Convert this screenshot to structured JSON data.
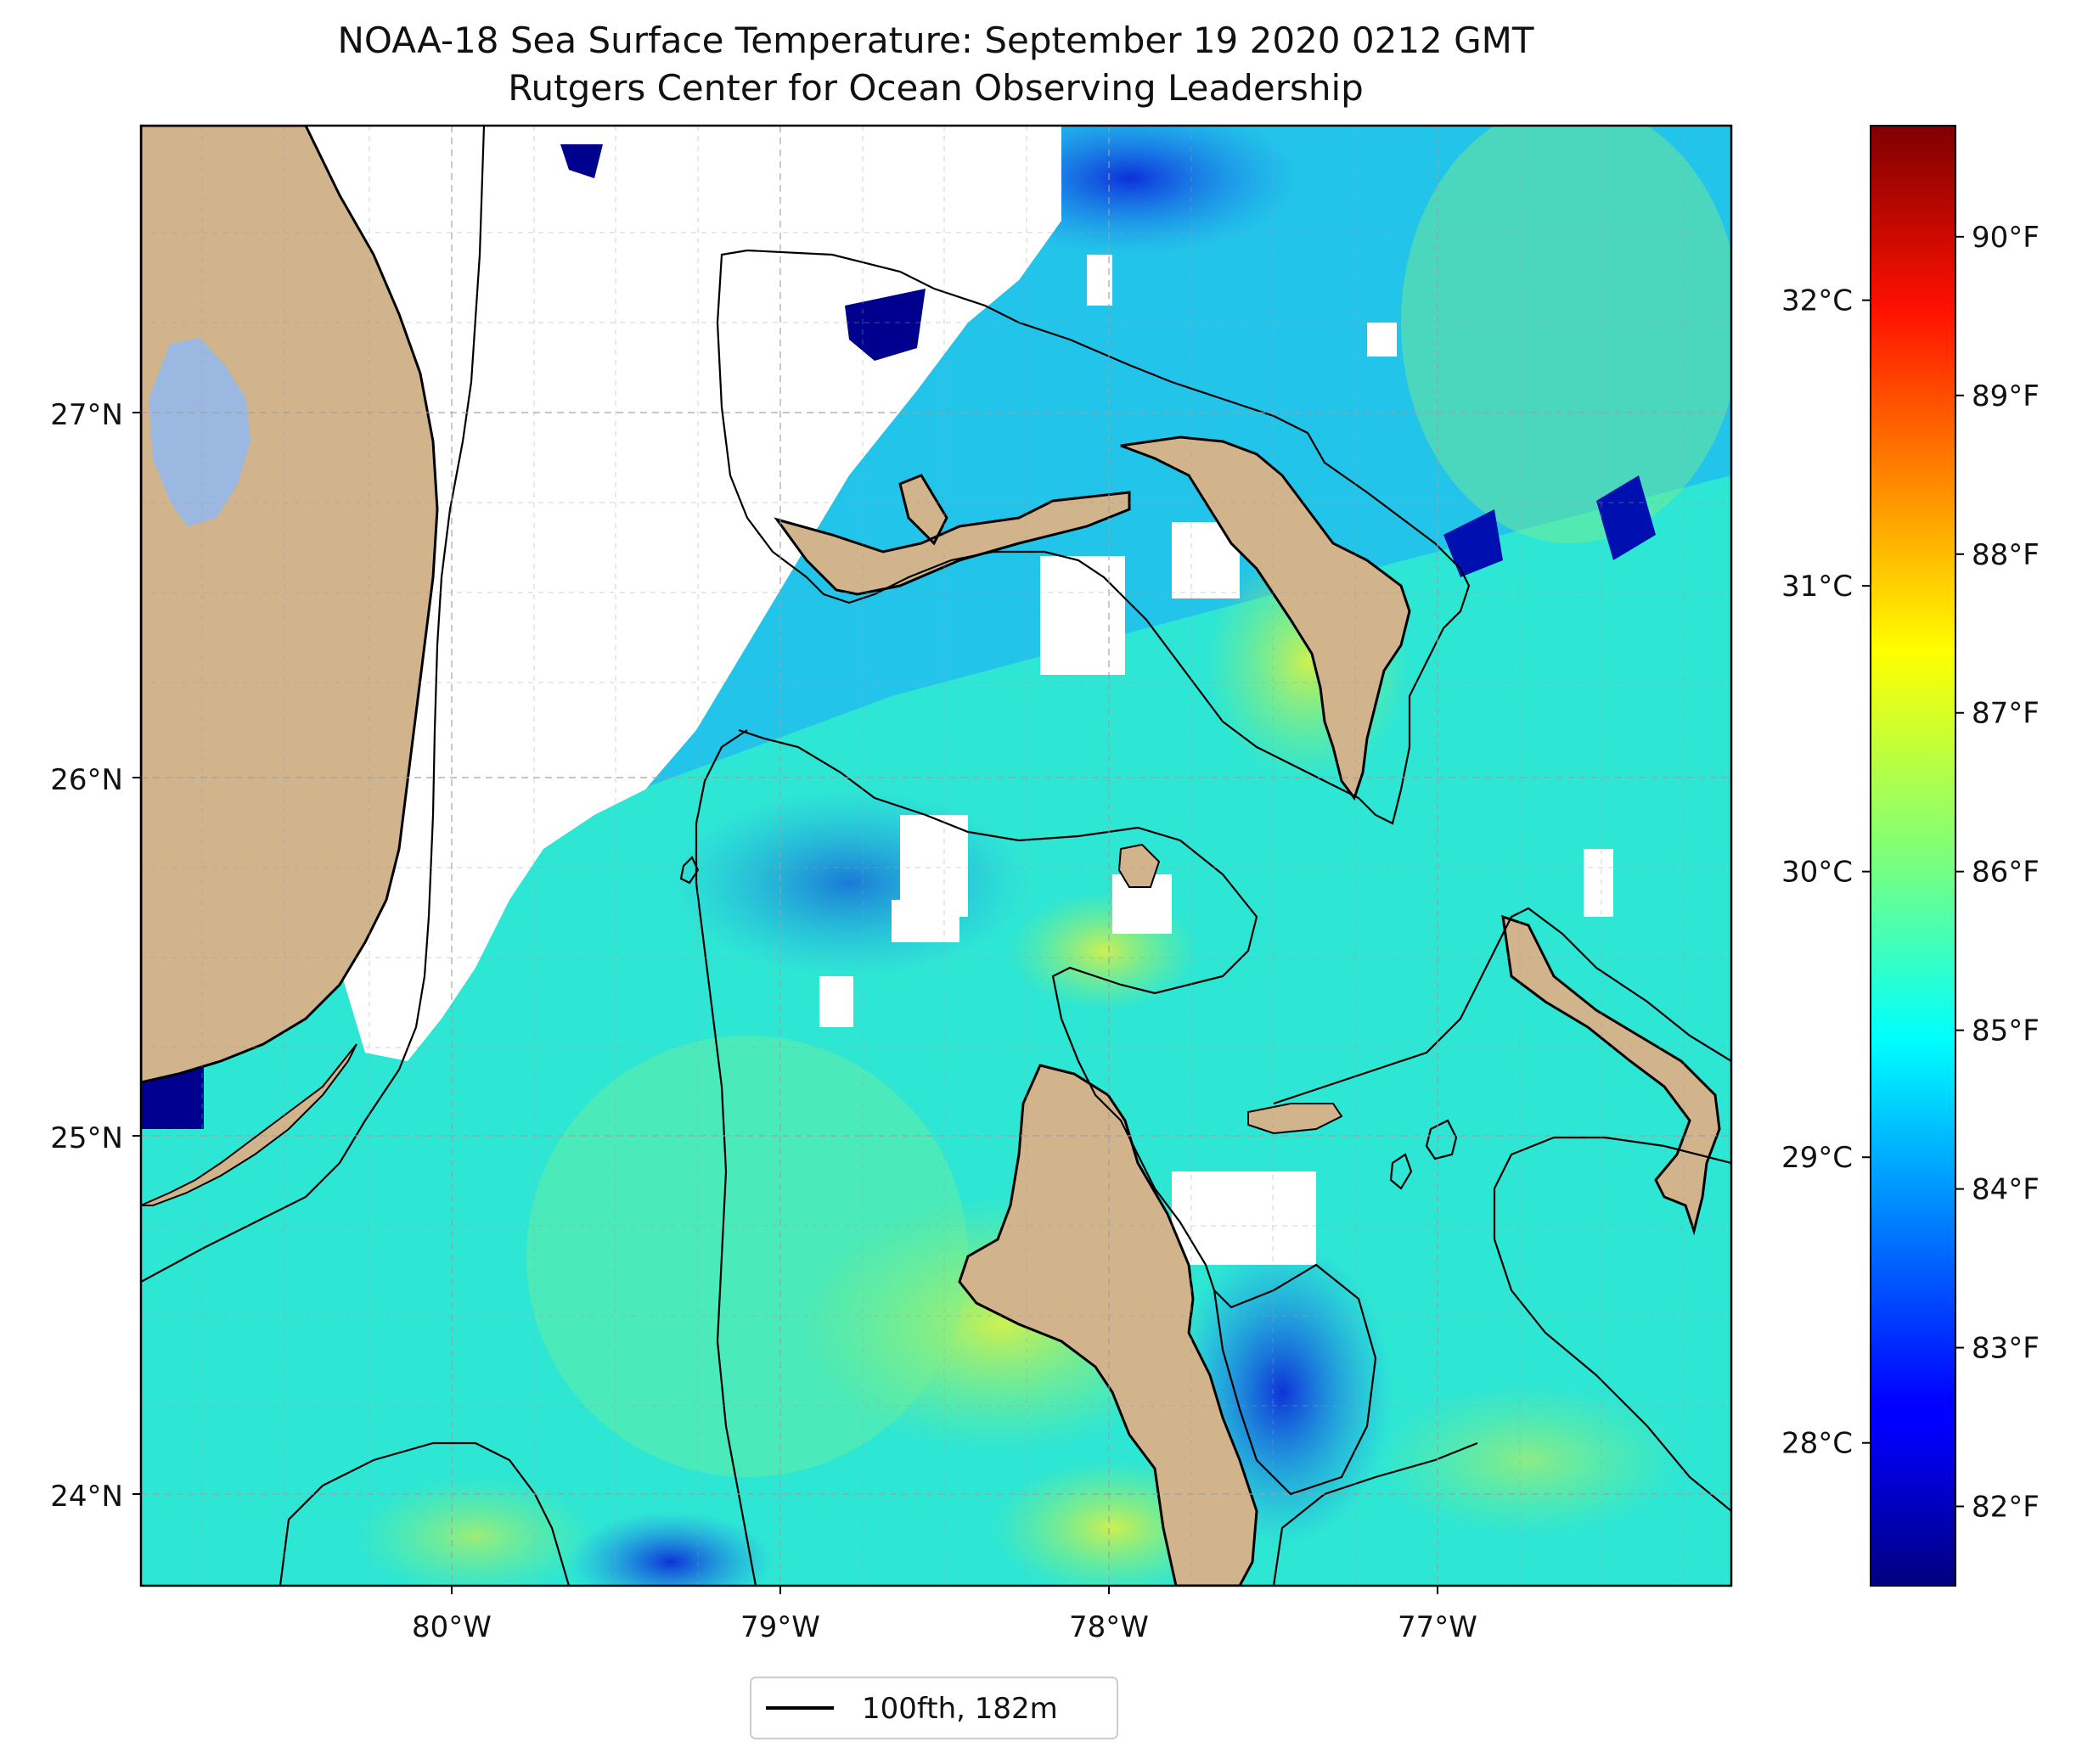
{
  "title": {
    "line1": "NOAA-18 Sea Surface Temperature: September 19 2020 0212 GMT",
    "line2": "Rutgers Center for Ocean Observing Leadership"
  },
  "map": {
    "lat_ticks": [
      {
        "label": "27°N",
        "value": 27
      },
      {
        "label": "26°N",
        "value": 26
      },
      {
        "label": "25°N",
        "value": 25
      },
      {
        "label": "24°N",
        "value": 24
      }
    ],
    "lon_ticks": [
      {
        "label": "80°W",
        "value": -80
      },
      {
        "label": "79°W",
        "value": -79
      },
      {
        "label": "78°W",
        "value": -78
      },
      {
        "label": "77°W",
        "value": -77
      }
    ],
    "extent": {
      "lon": [
        -80.95,
        -76.1
      ],
      "lat": [
        23.75,
        27.8
      ]
    },
    "colors": {
      "land": "#d2b48c",
      "lake": "#9ab8e0",
      "missing": "#ffffff",
      "grid": "#a0a0a0",
      "isobath": "#000000"
    }
  },
  "colorbar": {
    "fahrenheit": [
      "82°F",
      "83°F",
      "84°F",
      "85°F",
      "86°F",
      "87°F",
      "88°F",
      "89°F",
      "90°F"
    ],
    "celsius": [
      "28°C",
      "29°C",
      "30°C",
      "31°C",
      "32°C"
    ],
    "range_f": [
      81.5,
      90.7
    ],
    "colormap": "jet"
  },
  "legend": {
    "label": "100fth, 182m"
  }
}
